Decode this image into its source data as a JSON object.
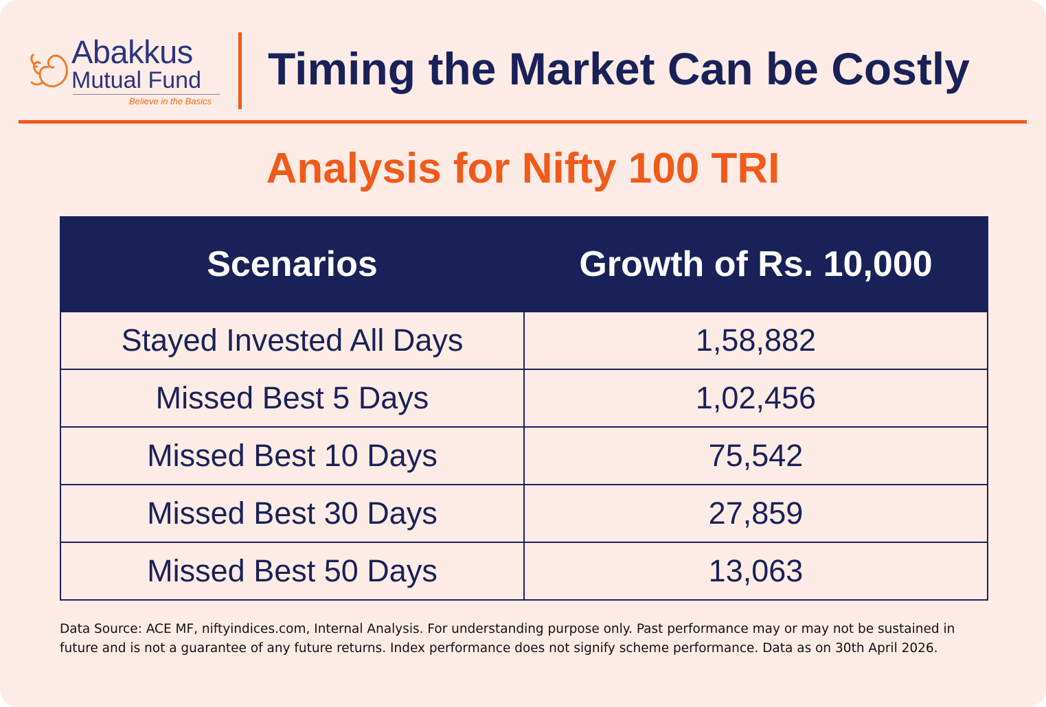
{
  "brand": {
    "name": "Abakkus",
    "sub": "Mutual Fund",
    "tagline": "Believe in the Basics",
    "colors": {
      "navy": "#1a2158",
      "orange": "#f05a1a",
      "background": "#fdece6"
    }
  },
  "header": {
    "title": "Timing the Market Can be Costly"
  },
  "subtitle": "Analysis for Nifty 100 TRI",
  "table": {
    "headers": [
      "Scenarios",
      "Growth of Rs. 10,000"
    ],
    "rows": [
      [
        "Stayed Invested All Days",
        "1,58,882"
      ],
      [
        "Missed Best 5 Days",
        "1,02,456"
      ],
      [
        "Missed Best 10 Days",
        "75,542"
      ],
      [
        "Missed Best 30 Days",
        "27,859"
      ],
      [
        "Missed Best 50 Days",
        "13,063"
      ]
    ]
  },
  "footnote": "Data Source: ACE MF, niftyindices.com, Internal Analysis. For understanding purpose only. Past performance may or may not be sustained in future and is not a guarantee of any future returns. Index performance does not signify scheme performance. Data as on 30th April 2026."
}
